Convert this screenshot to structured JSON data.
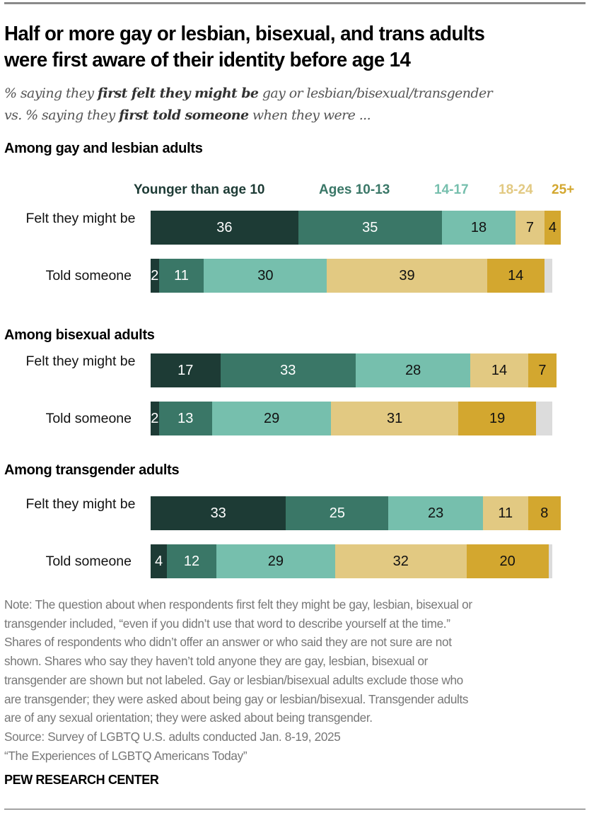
{
  "title": [
    "Half or more gay or lesbian, bisexual, and trans adults",
    "were first aware of their identity before age 14"
  ],
  "subtitle": {
    "line1": [
      {
        "t": "% saying they ",
        "b": false
      },
      {
        "t": "first felt they might be",
        "b": true
      },
      {
        "t": " gay or lesbian/bisexual/transgender",
        "b": false
      }
    ],
    "line2": [
      {
        "t": "vs. % saying they ",
        "b": false
      },
      {
        "t": "first told someone",
        "b": true
      },
      {
        "t": " when they were ...",
        "b": false
      }
    ]
  },
  "chart_data": {
    "type": "bar",
    "orientation": "horizontal-stacked",
    "unit": "%",
    "legend": [
      "Younger than age 10",
      "Ages 10-13",
      "14-17",
      "18-24",
      "25+"
    ],
    "legend_placement": "top",
    "colors": [
      "#1d3b35",
      "#3a7767",
      "#76bfad",
      "#e2c982",
      "#d3a72f"
    ],
    "unlabeled_color": "#dcdcdc",
    "panels": [
      {
        "title": "Among gay and lesbian adults",
        "rows": [
          {
            "label": "Felt they might be",
            "values": [
              36,
              35,
              18,
              7,
              4
            ]
          },
          {
            "label": "Told someone",
            "values": [
              2,
              11,
              30,
              39,
              14
            ],
            "unlabeled": 2
          }
        ]
      },
      {
        "title": "Among bisexual adults",
        "rows": [
          {
            "label": "Felt they might be",
            "values": [
              17,
              33,
              28,
              14,
              7
            ]
          },
          {
            "label": "Told someone",
            "values": [
              2,
              13,
              29,
              31,
              19
            ],
            "unlabeled": 4
          }
        ]
      },
      {
        "title": "Among transgender adults",
        "rows": [
          {
            "label": "Felt they might be",
            "values": [
              33,
              25,
              23,
              11,
              8
            ]
          },
          {
            "label": "Told someone",
            "values": [
              4,
              12,
              29,
              32,
              20
            ],
            "unlabeled": 1
          }
        ]
      }
    ]
  },
  "note": [
    "Note: The question about when respondents first felt they might be gay, lesbian, bisexual or",
    "transgender included, “even if you didn’t use that word to describe yourself at the time.”",
    "Shares of respondents who didn’t offer an answer or who said they are not sure are not",
    "shown. Shares who say they haven’t told anyone they are gay, lesbian, bisexual or",
    "transgender are shown but not labeled. Gay or lesbian/bisexual adults exclude those who",
    "are transgender; they were asked about being gay or lesbian/bisexual. Transgender adults",
    "are of any sexual orientation; they were asked about being transgender.",
    "Source: Survey of LGBTQ U.S. adults conducted Jan. 8-19, 2025",
    "“The Experiences of LGBTQ Americans Today”"
  ],
  "brand": "PEW RESEARCH CENTER"
}
